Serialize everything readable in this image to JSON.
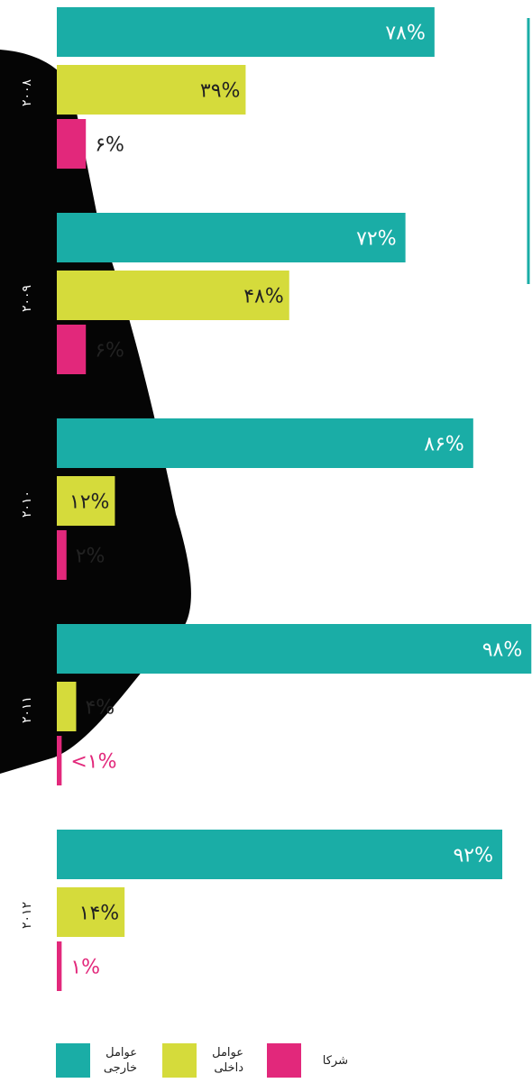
{
  "chart_data": {
    "type": "bar",
    "orientation": "horizontal",
    "categories": [
      "۲۰۰۸",
      "۲۰۰۹",
      "۲۰۱۰",
      "۲۰۱۱",
      "۲۰۱۲"
    ],
    "series": [
      {
        "name": "عوامل خارجی",
        "color": "#1aada6",
        "values": [
          78,
          72,
          86,
          98,
          92
        ],
        "value_labels": [
          "۷۸%",
          "۷۲%",
          "۸۶%",
          "۹۸%",
          "۹۲%"
        ]
      },
      {
        "name": "عوامل داخلی",
        "color": "#d5db3b",
        "values": [
          39,
          48,
          12,
          4,
          14
        ],
        "value_labels": [
          "۳۹%",
          "۴۸%",
          "۱۲%",
          "۴%",
          "۱۴%"
        ]
      },
      {
        "name": "شرکا",
        "color": "#e2287b",
        "values": [
          6,
          6,
          2,
          1,
          1
        ],
        "value_labels": [
          "۶%",
          "۶%",
          "۲%",
          "<۱%",
          "۱%"
        ]
      }
    ],
    "xlim": [
      0,
      100
    ]
  }
}
